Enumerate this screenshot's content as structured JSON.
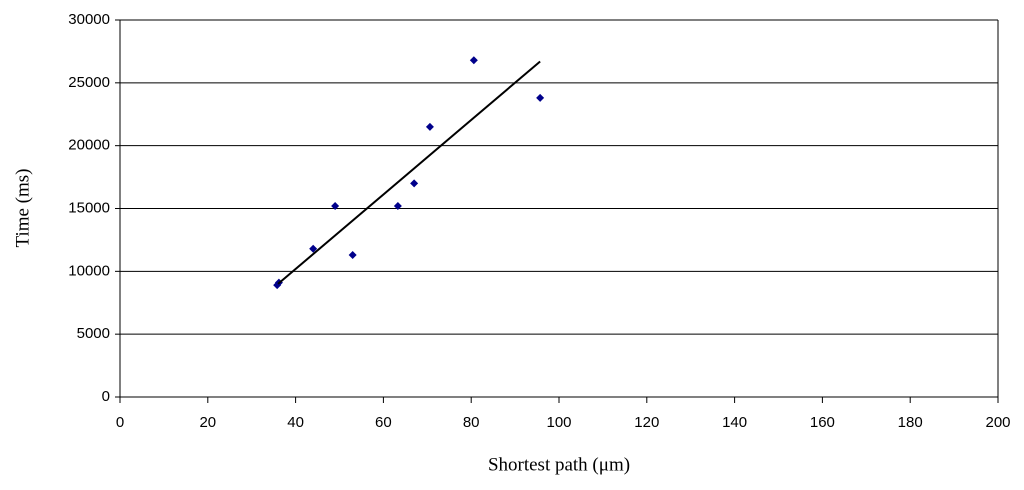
{
  "chart_data": {
    "type": "scatter",
    "x_label": "Shortest path (μm)",
    "y_label": "Time (ms)",
    "x": [
      35.8,
      36.2,
      44,
      49,
      53,
      63.3,
      67,
      70.6,
      80.6,
      95.7
    ],
    "y": [
      8900,
      9100,
      11800,
      15200,
      11300,
      15200,
      17000,
      21500,
      26800,
      23800
    ],
    "color": "#00008b",
    "trendline": {
      "x": [
        36,
        95.7
      ],
      "y": [
        9000,
        26700
      ],
      "color": "#000000"
    },
    "xlim": [
      0,
      200
    ],
    "xticks": [
      0,
      20,
      40,
      60,
      80,
      100,
      120,
      140,
      160,
      180,
      200
    ],
    "ylim": [
      0,
      30000
    ],
    "yticks": [
      0,
      5000,
      10000,
      15000,
      20000,
      25000,
      30000
    ],
    "grid": true
  }
}
